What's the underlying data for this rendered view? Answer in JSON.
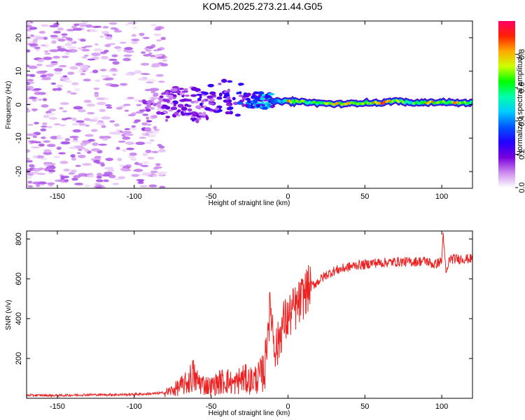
{
  "title": "KOM5.2025.273.21.44.G05",
  "chart_data": [
    {
      "type": "heatmap",
      "name": "spectrogram",
      "xlabel": "Height of straight line (km)",
      "ylabel": "Frequency (Hz)",
      "xlim": [
        -170,
        120
      ],
      "ylim": [
        -25,
        25
      ],
      "xticks": [
        -150,
        -100,
        -50,
        0,
        50,
        100
      ],
      "yticks": [
        -20,
        -10,
        0,
        10,
        20
      ],
      "colorbar": {
        "label": "Normalized spectral amplitude",
        "range": [
          0,
          1
        ],
        "ticks": [
          "0.0",
          "0.2",
          "0.4",
          "0.6",
          "0.8"
        ],
        "colormap": [
          "#ffffff",
          "#cc88ee",
          "#7700dd",
          "#2200ff",
          "#0055ff",
          "#00ccff",
          "#00ffaa",
          "#00ff00",
          "#ccff00",
          "#ffaa00",
          "#ff2200",
          "#ff0066"
        ]
      },
      "signal_track": [
        {
          "x": -92,
          "freq": -3.5,
          "amp": 0.12
        },
        {
          "x": -85,
          "freq": -1.5,
          "amp": 0.14
        },
        {
          "x": -78,
          "freq": -1.0,
          "amp": 0.16
        },
        {
          "x": -70,
          "freq": 1.5,
          "amp": 0.18
        },
        {
          "x": -62,
          "freq": 0.5,
          "amp": 0.18
        },
        {
          "x": -55,
          "freq": -1.0,
          "amp": 0.2
        },
        {
          "x": -48,
          "freq": 1.5,
          "amp": 0.22
        },
        {
          "x": -42,
          "freq": 2.5,
          "amp": 0.24
        },
        {
          "x": -35,
          "freq": 2.0,
          "amp": 0.3
        },
        {
          "x": -28,
          "freq": 1.5,
          "amp": 0.32
        },
        {
          "x": -20,
          "freq": 1.5,
          "amp": 0.36
        },
        {
          "x": -12,
          "freq": 1.0,
          "amp": 0.4
        },
        {
          "x": -5,
          "freq": 1.0,
          "amp": 0.45
        },
        {
          "x": 0,
          "freq": 1.0,
          "amp": 0.8
        },
        {
          "x": 10,
          "freq": 0.8,
          "amp": 0.7
        },
        {
          "x": 20,
          "freq": 0.5,
          "amp": 0.6
        },
        {
          "x": 30,
          "freq": 0.2,
          "amp": 0.85
        },
        {
          "x": 40,
          "freq": 0.3,
          "amp": 0.75
        },
        {
          "x": 50,
          "freq": 0.6,
          "amp": 0.7
        },
        {
          "x": 60,
          "freq": 0.5,
          "amp": 0.9
        },
        {
          "x": 70,
          "freq": 1.2,
          "amp": 0.7
        },
        {
          "x": 80,
          "freq": 0.5,
          "amp": 0.6
        },
        {
          "x": 90,
          "freq": 0.6,
          "amp": 0.85
        },
        {
          "x": 100,
          "freq": 0.8,
          "amp": 0.7
        },
        {
          "x": 110,
          "freq": 0.5,
          "amp": 0.8
        },
        {
          "x": 120,
          "freq": 0.6,
          "amp": 0.6
        }
      ]
    },
    {
      "type": "line",
      "name": "snr",
      "xlabel": "Height of straight line (km)",
      "ylabel": "SNR (v/v)",
      "xlim": [
        -170,
        120
      ],
      "ylim": [
        0,
        840
      ],
      "xticks": [
        -150,
        -100,
        -50,
        0,
        50,
        100
      ],
      "yticks": [
        200,
        400,
        600,
        800
      ],
      "color": "#ee2222",
      "series": [
        {
          "name": "SNR",
          "x": [
            -170,
            -160,
            -150,
            -140,
            -130,
            -120,
            -110,
            -100,
            -90,
            -80,
            -75,
            -70,
            -65,
            -62,
            -60,
            -55,
            -50,
            -45,
            -40,
            -35,
            -30,
            -25,
            -20,
            -17,
            -15,
            -13,
            -11,
            -9,
            -7,
            -5,
            -3,
            0,
            3,
            6,
            9,
            12,
            15,
            20,
            25,
            30,
            35,
            40,
            45,
            50,
            55,
            60,
            70,
            80,
            90,
            95,
            100,
            101,
            102,
            103,
            105,
            110,
            120
          ],
          "values": [
            15,
            15,
            14,
            16,
            18,
            18,
            18,
            20,
            22,
            28,
            40,
            60,
            80,
            120,
            90,
            70,
            60,
            80,
            90,
            70,
            100,
            90,
            100,
            120,
            150,
            380,
            450,
            280,
            250,
            330,
            380,
            400,
            440,
            460,
            500,
            540,
            560,
            590,
            620,
            640,
            650,
            660,
            670,
            670,
            680,
            680,
            685,
            685,
            690,
            670,
            690,
            840,
            690,
            620,
            700,
            700,
            700
          ]
        }
      ]
    }
  ]
}
